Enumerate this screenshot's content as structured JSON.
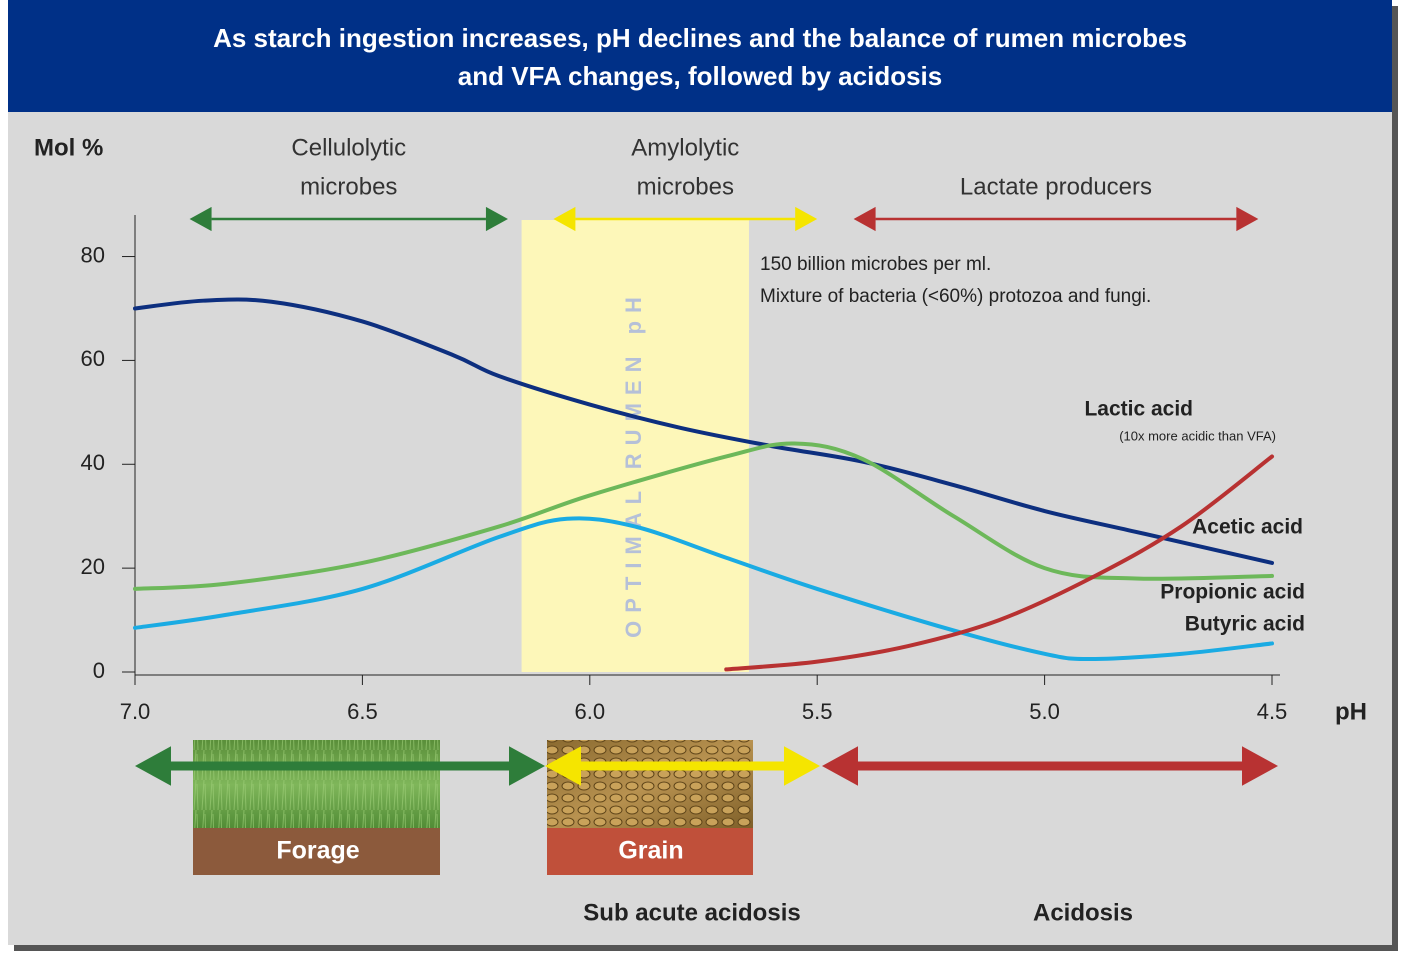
{
  "chart_data": {
    "type": "line",
    "title": [
      "As starch ingestion increases, pH declines and the balance of rumen microbes",
      "and VFA changes, followed by acidosis"
    ],
    "y_label": "Mol %",
    "x_label": "pH",
    "xlim": [
      7.0,
      4.5
    ],
    "ylim": [
      0,
      88
    ],
    "xticks": [
      {
        "value": 7,
        "label": "7.0"
      },
      6.5,
      {
        "value": 6,
        "label": "6.0"
      },
      5.5,
      {
        "value": 5,
        "label": "5.0"
      },
      4.5
    ],
    "yticks": [
      0,
      20,
      40,
      60,
      80
    ],
    "note": [
      "150 billion microbes per ml.",
      "Mixture of bacteria (<60%) protozoa and  fungi."
    ],
    "optimal_band": {
      "label": "OPTIMAL RUMEN pH",
      "range": [
        6.15,
        5.65
      ],
      "color": "#fdf7b9"
    },
    "microbe_groups": [
      {
        "label": [
          "Cellulolytic",
          "microbes"
        ],
        "color": "#2e7d3a",
        "range": [
          6.88,
          6.18
        ]
      },
      {
        "label": [
          "Amylolytic",
          "microbes"
        ],
        "color": "#f5e500",
        "range": [
          6.08,
          5.5
        ]
      },
      {
        "label": [
          "Lactate producers"
        ],
        "color": "#b83232",
        "range": [
          5.42,
          4.53
        ]
      }
    ],
    "series": [
      {
        "name": "Acetic acid",
        "color": "#0d2f7f",
        "x": [
          7.0,
          6.85,
          6.7,
          6.5,
          6.3,
          6.2,
          6.0,
          5.8,
          5.6,
          5.4,
          5.2,
          5.0,
          4.8,
          4.5
        ],
        "values": [
          70,
          71.5,
          71.3,
          67.5,
          61,
          57,
          51.5,
          47,
          43.5,
          40.5,
          36,
          31,
          27,
          21
        ]
      },
      {
        "name": "Propionic acid",
        "color": "#6db85a",
        "x": [
          7.0,
          6.8,
          6.5,
          6.2,
          6.0,
          5.7,
          5.55,
          5.4,
          5.2,
          5.0,
          4.8,
          4.5
        ],
        "values": [
          16,
          17,
          21,
          28,
          34,
          41.5,
          44,
          41,
          30,
          20,
          18,
          18.5
        ]
      },
      {
        "name": "Butyric acid",
        "color": "#1aabe3",
        "x": [
          7.0,
          6.8,
          6.5,
          6.2,
          6.05,
          5.9,
          5.7,
          5.5,
          5.2,
          5.0,
          4.9,
          4.7,
          4.5
        ],
        "values": [
          8.5,
          11,
          16,
          26,
          29.5,
          28,
          22,
          16,
          8,
          3.5,
          2.5,
          3.5,
          5.5
        ]
      },
      {
        "name": "Lactic acid",
        "note": "(10x more acidic than VFA)",
        "color": "#b83232",
        "x": [
          5.7,
          5.5,
          5.3,
          5.1,
          4.9,
          4.7,
          4.5
        ],
        "values": [
          0.5,
          2,
          5,
          10,
          18,
          28,
          41.5
        ]
      }
    ],
    "feeds": [
      "Forage",
      "Grain"
    ],
    "stages": [
      "Sub acute acidosis",
      "Acidosis"
    ]
  }
}
